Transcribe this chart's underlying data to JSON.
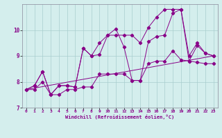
{
  "xlabel": "Windchill (Refroidissement éolien,°C)",
  "x_values": [
    0,
    1,
    2,
    3,
    4,
    5,
    6,
    7,
    8,
    9,
    10,
    11,
    12,
    13,
    14,
    15,
    16,
    17,
    18,
    19,
    20,
    21,
    22,
    23
  ],
  "line_zigzag": [
    7.7,
    7.85,
    8.4,
    7.5,
    7.85,
    7.85,
    7.8,
    9.3,
    9.0,
    9.05,
    9.8,
    10.05,
    9.35,
    8.05,
    8.05,
    9.55,
    9.75,
    9.8,
    10.65,
    10.8,
    8.8,
    9.4,
    9.1,
    9.0
  ],
  "line_upper": [
    7.7,
    7.85,
    8.4,
    7.5,
    7.85,
    7.85,
    7.8,
    9.3,
    9.0,
    9.5,
    9.8,
    9.8,
    9.8,
    9.8,
    9.5,
    10.1,
    10.5,
    10.8,
    10.8,
    10.8,
    9.0,
    9.5,
    9.1,
    9.0
  ],
  "line_lower": [
    7.7,
    7.7,
    8.0,
    7.5,
    7.5,
    7.7,
    7.7,
    7.8,
    7.8,
    8.3,
    8.3,
    8.3,
    8.3,
    8.05,
    8.05,
    8.7,
    8.8,
    8.8,
    9.2,
    8.85,
    8.8,
    8.75,
    8.7,
    8.7
  ],
  "line_trend_x": [
    0,
    23
  ],
  "line_trend_y": [
    7.7,
    9.0
  ],
  "background_color": "#d4eeed",
  "line_color": "#880088",
  "grid_color": "#a8cece",
  "ylim": [
    7.0,
    11.0
  ],
  "xlim": [
    -0.5,
    23.5
  ],
  "yticks": [
    7,
    8,
    9,
    10
  ],
  "xticks": [
    0,
    1,
    2,
    3,
    4,
    5,
    6,
    7,
    8,
    9,
    10,
    11,
    12,
    13,
    14,
    15,
    16,
    17,
    18,
    19,
    20,
    21,
    22,
    23
  ]
}
